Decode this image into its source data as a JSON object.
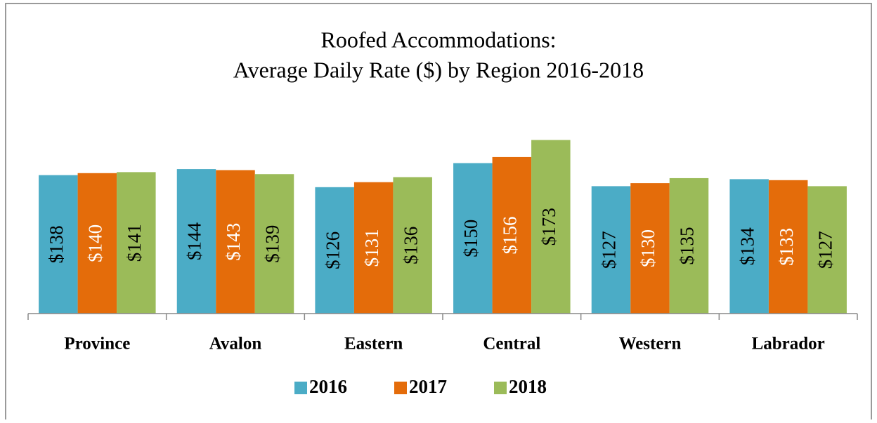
{
  "chart_data": {
    "type": "bar",
    "title": [
      "Roofed Accommodations:",
      "Average Daily Rate ($) by Region 2016-2018"
    ],
    "categories": [
      "Province",
      "Avalon",
      "Eastern",
      "Central",
      "Western",
      "Labrador"
    ],
    "series": [
      {
        "name": "2016",
        "color": "#4bacc6",
        "label_color": "#000000",
        "values": [
          138,
          144,
          126,
          150,
          127,
          134
        ],
        "value_labels": [
          "$138",
          "$144",
          "$126",
          "$150",
          "$127",
          "$134"
        ]
      },
      {
        "name": "2017",
        "color": "#e46c0a",
        "label_color": "#ffffff",
        "values": [
          140,
          143,
          131,
          156,
          130,
          133
        ],
        "value_labels": [
          "$140",
          "$143",
          "$131",
          "$156",
          "$130",
          "$133"
        ]
      },
      {
        "name": "2018",
        "color": "#9bbb59",
        "label_color": "#000000",
        "values": [
          141,
          139,
          136,
          173,
          135,
          127
        ],
        "value_labels": [
          "$141",
          "$139",
          "$136",
          "$173",
          "$135",
          "$127"
        ]
      }
    ],
    "legend": "bottom"
  }
}
